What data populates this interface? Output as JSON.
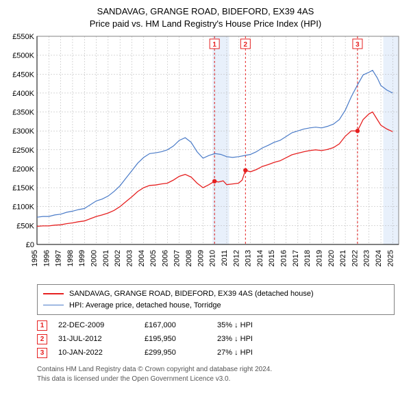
{
  "title_line1": "SANDAVAG, GRANGE ROAD, BIDEFORD, EX39 4AS",
  "title_line2": "Price paid vs. HM Land Registry's House Price Index (HPI)",
  "title_fontsize": 13,
  "chart": {
    "type": "line",
    "background_color": "#ffffff",
    "grid_color": "#b0b0b0",
    "axis_color": "#000000",
    "plot_border_color": "#808080",
    "x_years": [
      1995,
      1996,
      1997,
      1998,
      1999,
      2000,
      2001,
      2002,
      2003,
      2004,
      2005,
      2006,
      2007,
      2008,
      2009,
      2010,
      2011,
      2012,
      2013,
      2014,
      2015,
      2016,
      2017,
      2018,
      2019,
      2020,
      2021,
      2022,
      2023,
      2024,
      2025
    ],
    "xlim": [
      1995,
      2025.5
    ],
    "ylim": [
      0,
      550000
    ],
    "ytick_step": 50000,
    "ytick_labels": [
      "£0",
      "£50K",
      "£100K",
      "£150K",
      "£200K",
      "£250K",
      "£300K",
      "£350K",
      "£400K",
      "£450K",
      "£500K",
      "£550K"
    ],
    "series": [
      {
        "name": "hpi",
        "color": "#4a7bc8",
        "width": 1.2,
        "points": [
          [
            1995,
            72000
          ],
          [
            1995.5,
            74000
          ],
          [
            1996,
            74000
          ],
          [
            1996.5,
            78000
          ],
          [
            1997,
            80000
          ],
          [
            1997.5,
            85000
          ],
          [
            1998,
            88000
          ],
          [
            1998.5,
            92000
          ],
          [
            1999,
            95000
          ],
          [
            1999.5,
            105000
          ],
          [
            2000,
            115000
          ],
          [
            2000.5,
            120000
          ],
          [
            2001,
            128000
          ],
          [
            2001.5,
            140000
          ],
          [
            2002,
            155000
          ],
          [
            2002.5,
            175000
          ],
          [
            2003,
            195000
          ],
          [
            2003.5,
            215000
          ],
          [
            2004,
            230000
          ],
          [
            2004.5,
            240000
          ],
          [
            2005,
            242000
          ],
          [
            2005.5,
            245000
          ],
          [
            2006,
            250000
          ],
          [
            2006.5,
            260000
          ],
          [
            2007,
            275000
          ],
          [
            2007.5,
            282000
          ],
          [
            2008,
            270000
          ],
          [
            2008.5,
            245000
          ],
          [
            2009,
            228000
          ],
          [
            2009.5,
            235000
          ],
          [
            2010,
            240000
          ],
          [
            2010.5,
            238000
          ],
          [
            2011,
            232000
          ],
          [
            2011.5,
            230000
          ],
          [
            2012,
            232000
          ],
          [
            2012.5,
            235000
          ],
          [
            2013,
            238000
          ],
          [
            2013.5,
            245000
          ],
          [
            2014,
            255000
          ],
          [
            2014.5,
            262000
          ],
          [
            2015,
            270000
          ],
          [
            2015.5,
            275000
          ],
          [
            2016,
            285000
          ],
          [
            2016.5,
            295000
          ],
          [
            2017,
            300000
          ],
          [
            2017.5,
            305000
          ],
          [
            2018,
            308000
          ],
          [
            2018.5,
            310000
          ],
          [
            2019,
            308000
          ],
          [
            2019.5,
            312000
          ],
          [
            2020,
            318000
          ],
          [
            2020.5,
            330000
          ],
          [
            2021,
            355000
          ],
          [
            2021.5,
            390000
          ],
          [
            2022,
            420000
          ],
          [
            2022.5,
            448000
          ],
          [
            2023,
            455000
          ],
          [
            2023.3,
            460000
          ],
          [
            2023.7,
            440000
          ],
          [
            2024,
            420000
          ],
          [
            2024.5,
            408000
          ],
          [
            2025,
            400000
          ]
        ]
      },
      {
        "name": "price_paid",
        "color": "#e62020",
        "width": 1.3,
        "points": [
          [
            1995,
            48000
          ],
          [
            1995.5,
            49000
          ],
          [
            1996,
            49000
          ],
          [
            1996.5,
            51000
          ],
          [
            1997,
            52000
          ],
          [
            1997.5,
            55000
          ],
          [
            1998,
            57000
          ],
          [
            1998.5,
            60000
          ],
          [
            1999,
            62000
          ],
          [
            1999.5,
            68000
          ],
          [
            2000,
            74000
          ],
          [
            2000.5,
            78000
          ],
          [
            2001,
            83000
          ],
          [
            2001.5,
            90000
          ],
          [
            2002,
            100000
          ],
          [
            2002.5,
            113000
          ],
          [
            2003,
            126000
          ],
          [
            2003.5,
            140000
          ],
          [
            2004,
            150000
          ],
          [
            2004.5,
            156000
          ],
          [
            2005,
            157000
          ],
          [
            2005.5,
            160000
          ],
          [
            2006,
            162000
          ],
          [
            2006.5,
            170000
          ],
          [
            2007,
            180000
          ],
          [
            2007.5,
            185000
          ],
          [
            2008,
            178000
          ],
          [
            2008.5,
            162000
          ],
          [
            2009,
            150000
          ],
          [
            2009.5,
            158000
          ],
          [
            2009.97,
            167000
          ],
          [
            2010.3,
            165000
          ],
          [
            2010.7,
            168000
          ],
          [
            2011,
            158000
          ],
          [
            2011.5,
            160000
          ],
          [
            2012,
            162000
          ],
          [
            2012.3,
            170000
          ],
          [
            2012.58,
            195950
          ],
          [
            2013,
            192000
          ],
          [
            2013.5,
            198000
          ],
          [
            2014,
            206000
          ],
          [
            2014.5,
            211000
          ],
          [
            2015,
            217000
          ],
          [
            2015.5,
            221000
          ],
          [
            2016,
            229000
          ],
          [
            2016.5,
            237000
          ],
          [
            2017,
            241000
          ],
          [
            2017.5,
            245000
          ],
          [
            2018,
            248000
          ],
          [
            2018.5,
            250000
          ],
          [
            2019,
            248000
          ],
          [
            2019.5,
            251000
          ],
          [
            2020,
            256000
          ],
          [
            2020.5,
            266000
          ],
          [
            2021,
            286000
          ],
          [
            2021.5,
            300000
          ],
          [
            2022.03,
            299950
          ],
          [
            2022.5,
            330000
          ],
          [
            2023,
            345000
          ],
          [
            2023.3,
            350000
          ],
          [
            2023.7,
            330000
          ],
          [
            2024,
            315000
          ],
          [
            2024.5,
            305000
          ],
          [
            2025,
            298000
          ]
        ]
      }
    ],
    "markers": [
      {
        "n": "1",
        "year": 2009.97,
        "price": 167000
      },
      {
        "n": "2",
        "year": 2012.58,
        "price": 195950
      },
      {
        "n": "3",
        "year": 2022.03,
        "price": 299950
      }
    ],
    "shade_bands": [
      {
        "from": 2009.8,
        "to": 2011.2,
        "color": "#e8f0fb"
      },
      {
        "from": 2024.2,
        "to": 2025.5,
        "color": "#e8f0fb"
      }
    ],
    "marker_line_color": "#e62020",
    "marker_line_dash": "3,3",
    "marker_box_fill": "#ffffff",
    "marker_box_stroke": "#e62020",
    "marker_dot_fill": "#e62020"
  },
  "legend": {
    "border_color": "#808080",
    "items": [
      {
        "color": "#e62020",
        "width": 1.3,
        "label": "SANDAVAG, GRANGE ROAD, BIDEFORD, EX39 4AS (detached house)"
      },
      {
        "color": "#4a7bc8",
        "width": 1.2,
        "label": "HPI: Average price, detached house, Torridge"
      }
    ]
  },
  "marker_rows": [
    {
      "n": "1",
      "date": "22-DEC-2009",
      "price": "£167,000",
      "delta": "35% ↓ HPI"
    },
    {
      "n": "2",
      "date": "31-JUL-2012",
      "price": "£195,950",
      "delta": "23% ↓ HPI"
    },
    {
      "n": "3",
      "date": "10-JAN-2022",
      "price": "£299,950",
      "delta": "27% ↓ HPI"
    }
  ],
  "footer_line1": "Contains HM Land Registry data © Crown copyright and database right 2024.",
  "footer_line2": "This data is licensed under the Open Government Licence v3.0."
}
